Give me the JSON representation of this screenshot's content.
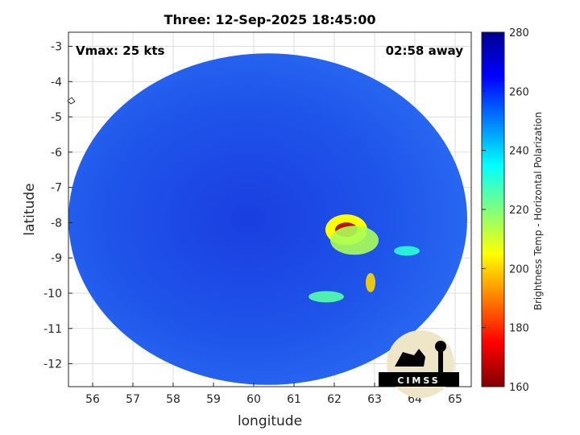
{
  "chart_data": {
    "type": "heatmap",
    "title": "Three: 12-Sep-2025 18:45:00",
    "xlabel": "longitude",
    "ylabel": "latitude",
    "xlim": [
      55.4,
      65.4
    ],
    "ylim": [
      -12.65,
      -2.6
    ],
    "xticks": [
      56,
      57,
      58,
      59,
      60,
      61,
      62,
      63,
      64,
      65
    ],
    "yticks": [
      -3,
      -4,
      -5,
      -6,
      -7,
      -8,
      -9,
      -10,
      -11,
      -12
    ],
    "grid": true,
    "annotations": {
      "vmax": "Vmax: 25 kts",
      "time_away": "02:58 away"
    },
    "colorbar": {
      "label": "Brightness Temp - Horizontal Polarization",
      "range": [
        160,
        280
      ],
      "ticks": [
        160,
        180,
        200,
        220,
        240,
        260,
        280
      ],
      "colormap": "jet"
    },
    "swath": {
      "center": [
        60.35,
        -7.9
      ],
      "radius_lon": 4.95,
      "radius_lat": 4.7,
      "background_value": 255
    },
    "features": [
      {
        "lon": 62.3,
        "lat": -8.2,
        "value": 165
      },
      {
        "lon": 62.5,
        "lat": -8.5,
        "value": 215
      },
      {
        "lon": 62.9,
        "lat": -9.7,
        "value": 200
      },
      {
        "lon": 61.8,
        "lat": -10.1,
        "value": 225
      },
      {
        "lon": 63.8,
        "lat": -8.8,
        "value": 230
      }
    ],
    "logo": "CIMSS"
  }
}
